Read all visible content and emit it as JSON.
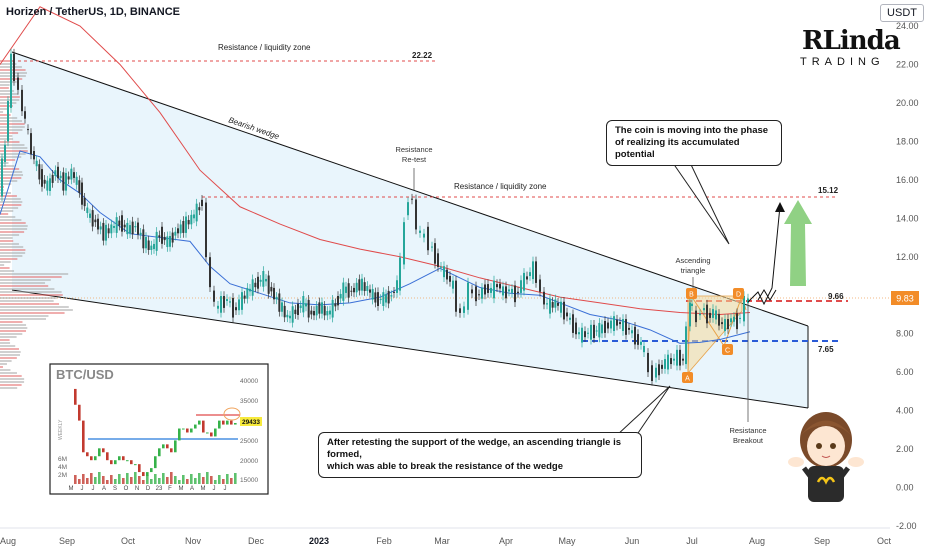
{
  "header": {
    "title": "Horizen / TetherUS, 1D, BINANCE",
    "currency": "USDT"
  },
  "logo": {
    "main": "RLinda",
    "sub": "TRADING"
  },
  "annotations": {
    "resistance_zone_top": "Resistance / liquidity zone",
    "resistance_zone_top_value": "22.22",
    "bearish_wedge": "Bearish wedge",
    "resistance_retest_line1": "Resistance",
    "resistance_retest_line2": "Re-test",
    "resistance_zone_mid": "Resistance / liquidity zone",
    "target_value": "15.12",
    "ascending_triangle_line1": "Ascending",
    "ascending_triangle_line2": "triangle",
    "level_966": "9.66",
    "level_765": "7.65",
    "resistance_breakout_line1": "Resistance",
    "resistance_breakout_line2": "Breakout",
    "point_a": "A",
    "point_b": "B",
    "point_c": "C",
    "point_d": "D",
    "callout_top_line1": "The coin is moving into the phase",
    "callout_top_line2": "of realizing its accumulated potential",
    "callout_bottom_line1": "After retesting the support of the wedge, an ascending triangle is formed,",
    "callout_bottom_line2": "which was able to break the resistance of the wedge",
    "current_price": "9.83"
  },
  "inset": {
    "title": "BTC/USD",
    "ylabel": "WEEKLY",
    "price_label": "29433",
    "y_ticks": [
      "40000",
      "35000",
      "30000",
      "25000",
      "20000",
      "15000"
    ],
    "vol_ticks": [
      "6M",
      "4M",
      "2M"
    ],
    "x_ticks": [
      "M",
      "J",
      "J",
      "A",
      "S",
      "O",
      "N",
      "D",
      "23",
      "F",
      "M",
      "A",
      "M",
      "J",
      "J"
    ]
  },
  "chart_data": {
    "type": "line",
    "title": "Horizen / TetherUS, 1D, BINANCE",
    "x_ticks": [
      "Aug",
      "Sep",
      "Oct",
      "Nov",
      "Dec",
      "2023",
      "Feb",
      "Mar",
      "Apr",
      "May",
      "Jun",
      "Jul",
      "Aug",
      "Sep",
      "Oct"
    ],
    "y_ticks": [
      "24.00",
      "22.00",
      "20.00",
      "18.00",
      "16.00",
      "14.00",
      "12.00",
      "10.00",
      "8.00",
      "6.00",
      "4.00",
      "2.00",
      "0.00",
      "-2.00"
    ],
    "ylim": [
      -2,
      24
    ],
    "series": [
      {
        "values": [
          [
            0,
            15.5
          ],
          [
            6,
            18
          ],
          [
            12,
            22.2
          ],
          [
            16,
            21.5
          ],
          [
            20,
            20.5
          ],
          [
            26,
            19
          ],
          [
            32,
            17.5
          ],
          [
            40,
            16.2
          ],
          [
            48,
            15.6
          ],
          [
            56,
            16.5
          ],
          [
            64,
            15.8
          ],
          [
            72,
            16.4
          ],
          [
            80,
            15.5
          ],
          [
            88,
            14.2
          ],
          [
            96,
            13.8
          ],
          [
            104,
            13.2
          ],
          [
            112,
            13.5
          ],
          [
            120,
            13.8
          ],
          [
            128,
            13.4
          ],
          [
            136,
            13.6
          ],
          [
            144,
            12.8
          ],
          [
            152,
            12.4
          ],
          [
            160,
            13.2
          ],
          [
            168,
            12.7
          ],
          [
            176,
            13.3
          ],
          [
            184,
            13.6
          ],
          [
            192,
            14.0
          ],
          [
            200,
            14.6
          ],
          [
            204,
            15.0
          ],
          [
            208,
            11.8
          ],
          [
            212,
            10.6
          ],
          [
            216,
            9.3
          ],
          [
            222,
            9.6
          ],
          [
            228,
            9.8
          ],
          [
            234,
            9.2
          ],
          [
            240,
            9.6
          ],
          [
            248,
            10.2
          ],
          [
            256,
            10.6
          ],
          [
            264,
            10.9
          ],
          [
            272,
            10.2
          ],
          [
            280,
            9.5
          ],
          [
            288,
            8.8
          ],
          [
            296,
            9.2
          ],
          [
            304,
            9.6
          ],
          [
            312,
            9.0
          ],
          [
            320,
            9.4
          ],
          [
            328,
            9.0
          ],
          [
            336,
            9.6
          ],
          [
            344,
            10.3
          ],
          [
            352,
            10.2
          ],
          [
            360,
            10.6
          ],
          [
            368,
            10.3
          ],
          [
            376,
            9.8
          ],
          [
            384,
            9.8
          ],
          [
            392,
            10.0
          ],
          [
            398,
            10.6
          ],
          [
            402,
            11.6
          ],
          [
            406,
            13.8
          ],
          [
            410,
            15.2
          ],
          [
            414,
            14.8
          ],
          [
            418,
            13.6
          ],
          [
            422,
            13.0
          ],
          [
            426,
            13.2
          ],
          [
            430,
            12.7
          ],
          [
            436,
            12.0
          ],
          [
            442,
            11.3
          ],
          [
            448,
            11.0
          ],
          [
            454,
            10.4
          ],
          [
            458,
            9.5
          ],
          [
            462,
            8.9
          ],
          [
            466,
            9.6
          ],
          [
            470,
            10.3
          ],
          [
            474,
            10.1
          ],
          [
            480,
            10.0
          ],
          [
            486,
            10.4
          ],
          [
            492,
            10.2
          ],
          [
            498,
            10.6
          ],
          [
            504,
            10.1
          ],
          [
            510,
            10.3
          ],
          [
            516,
            10.0
          ],
          [
            522,
            10.6
          ],
          [
            528,
            11.0
          ],
          [
            534,
            11.4
          ],
          [
            538,
            11.0
          ],
          [
            542,
            10.0
          ],
          [
            548,
            9.4
          ],
          [
            556,
            9.6
          ],
          [
            562,
            9.3
          ],
          [
            568,
            8.9
          ],
          [
            574,
            8.4
          ],
          [
            580,
            7.9
          ],
          [
            586,
            8.0
          ],
          [
            592,
            8.1
          ],
          [
            600,
            8.2
          ],
          [
            606,
            8.4
          ],
          [
            612,
            8.5
          ],
          [
            618,
            8.6
          ],
          [
            624,
            8.4
          ],
          [
            630,
            8.2
          ],
          [
            636,
            7.8
          ],
          [
            642,
            7.4
          ],
          [
            646,
            7.0
          ],
          [
            650,
            6.0
          ],
          [
            654,
            5.9
          ],
          [
            660,
            6.2
          ],
          [
            666,
            6.5
          ],
          [
            672,
            6.6
          ],
          [
            678,
            6.8
          ],
          [
            684,
            6.6
          ],
          [
            688,
            8.2
          ],
          [
            690,
            9.8
          ],
          [
            694,
            9.2
          ],
          [
            698,
            8.6
          ],
          [
            702,
            9.4
          ],
          [
            708,
            8.9
          ],
          [
            714,
            9.1
          ],
          [
            720,
            8.6
          ],
          [
            726,
            8.4
          ],
          [
            732,
            8.8
          ],
          [
            738,
            8.6
          ],
          [
            742,
            9.0
          ],
          [
            746,
            9.6
          ],
          [
            750,
            9.83
          ]
        ]
      },
      {
        "values": [
          [
            0,
            14.2
          ],
          [
            20,
            17.5
          ],
          [
            40,
            17.2
          ],
          [
            60,
            16.0
          ],
          [
            80,
            15.3
          ],
          [
            100,
            14.3
          ],
          [
            130,
            13.2
          ],
          [
            160,
            13.0
          ],
          [
            190,
            12.8
          ],
          [
            210,
            11.5
          ],
          [
            230,
            10.6
          ],
          [
            260,
            10.1
          ],
          [
            290,
            9.6
          ],
          [
            320,
            9.5
          ],
          [
            350,
            9.6
          ],
          [
            380,
            9.9
          ],
          [
            410,
            10.6
          ],
          [
            440,
            11.4
          ],
          [
            460,
            10.9
          ],
          [
            480,
            10.4
          ],
          [
            510,
            10.1
          ],
          [
            540,
            10.0
          ],
          [
            560,
            9.6
          ],
          [
            590,
            9.0
          ],
          [
            620,
            8.7
          ],
          [
            650,
            8.2
          ],
          [
            680,
            7.5
          ],
          [
            700,
            7.55
          ],
          [
            720,
            7.7
          ],
          [
            750,
            8.1
          ]
        ]
      },
      {
        "values": [
          [
            0,
            22.0
          ],
          [
            40,
            25.0
          ],
          [
            80,
            24.0
          ],
          [
            120,
            22.0
          ],
          [
            160,
            19.5
          ],
          [
            200,
            16.5
          ],
          [
            240,
            14.6
          ],
          [
            280,
            13.7
          ],
          [
            320,
            12.9
          ],
          [
            360,
            12.4
          ],
          [
            400,
            12.0
          ],
          [
            440,
            11.5
          ],
          [
            480,
            10.9
          ],
          [
            520,
            10.4
          ],
          [
            560,
            9.9
          ],
          [
            600,
            9.6
          ],
          [
            640,
            9.3
          ],
          [
            680,
            9.1
          ],
          [
            720,
            9.0
          ],
          [
            750,
            9.1
          ]
        ]
      }
    ],
    "levels": [
      22.22,
      15.12,
      9.66,
      7.65
    ]
  }
}
